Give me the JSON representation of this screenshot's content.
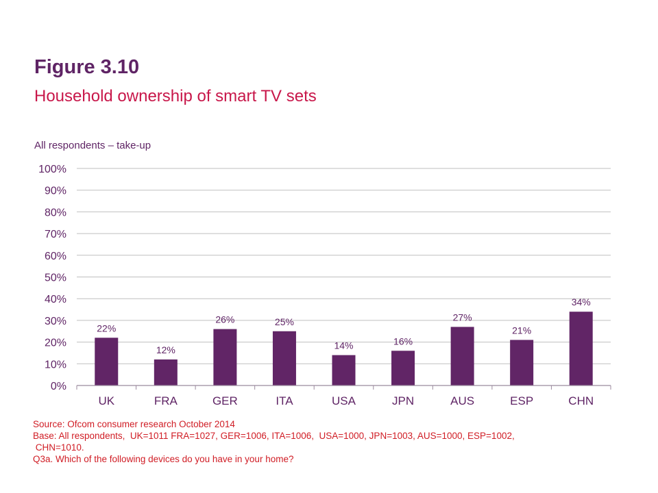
{
  "figure": {
    "title": "Figure 3.10",
    "subtitle": "Household ownership of smart TV sets",
    "chart_label": "All respondents – take-up"
  },
  "colors": {
    "title": "#5f2465",
    "subtitle": "#c8174a",
    "bar": "#612566",
    "gridline": "#bfbfbf",
    "axis": "#9b8a9e",
    "footnote": "#d01c24"
  },
  "chart_data": {
    "type": "bar",
    "title": "Household ownership of smart TV sets",
    "subtitle": "All respondents – take-up",
    "xlabel": "",
    "ylabel": "",
    "categories": [
      "UK",
      "FRA",
      "GER",
      "ITA",
      "USA",
      "JPN",
      "AUS",
      "ESP",
      "CHN"
    ],
    "values": [
      22,
      12,
      26,
      25,
      14,
      16,
      27,
      21,
      34
    ],
    "value_labels": [
      "22%",
      "12%",
      "26%",
      "25%",
      "14%",
      "16%",
      "27%",
      "21%",
      "34%"
    ],
    "ylim": [
      0,
      100
    ],
    "yticks": [
      0,
      10,
      20,
      30,
      40,
      50,
      60,
      70,
      80,
      90,
      100
    ],
    "ytick_labels": [
      "0%",
      "10%",
      "20%",
      "30%",
      "40%",
      "50%",
      "60%",
      "70%",
      "80%",
      "90%",
      "100%"
    ],
    "grid": true,
    "legend": "none"
  },
  "footnotes": {
    "source": "Source: Ofcom consumer research October 2014",
    "base": "Base: All respondents,  UK=1011 FRA=1027, GER=1006, ITA=1006,  USA=1000, JPN=1003, AUS=1000, ESP=1002,\n CHN=1010.",
    "question": "Q3a. Which of the following devices do you have in your home?"
  }
}
